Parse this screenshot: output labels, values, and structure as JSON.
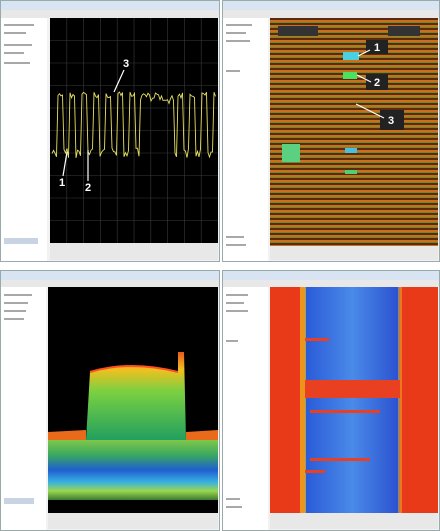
{
  "panels": [
    {
      "markers": [
        "1",
        "2",
        "3"
      ]
    },
    {
      "markers": [
        "1",
        "2",
        "3"
      ]
    }
  ]
}
